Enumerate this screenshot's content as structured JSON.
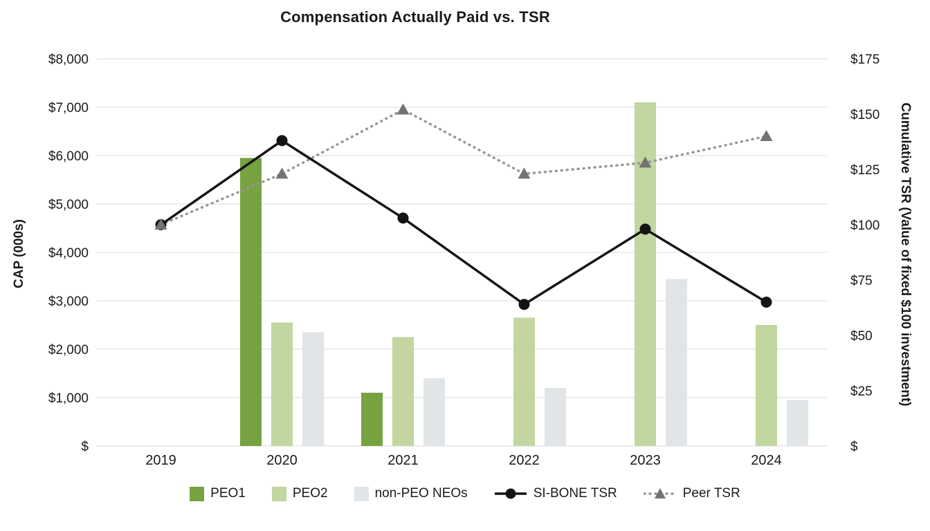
{
  "chart_data": {
    "type": "combo-bar-line",
    "title": "Compensation Actually Paid vs. TSR",
    "categories": [
      "2019",
      "2020",
      "2021",
      "2022",
      "2023",
      "2024"
    ],
    "left_axis": {
      "title": "CAP (000s)",
      "max": 8000,
      "tick_labels": [
        "$8,000",
        "$7,000",
        "$6,000",
        "$5,000",
        "$4,000",
        "$3,000",
        "$2,000",
        "$1,000",
        "$"
      ]
    },
    "right_axis": {
      "title": "Cumulative TSR (Value of fixed $100 investment)",
      "max": 175,
      "tick_labels": [
        "$175",
        "$150",
        "$125",
        "$100",
        "$75",
        "$50",
        "$25",
        "$"
      ]
    },
    "bar_series": [
      {
        "name": "PEO1",
        "color_key": "peo1",
        "values": [
          null,
          5950,
          1100,
          null,
          null,
          null
        ]
      },
      {
        "name": "PEO2",
        "color_key": "peo2",
        "values": [
          null,
          2550,
          2250,
          2650,
          7100,
          2500
        ]
      },
      {
        "name": "non-PEO NEOs",
        "color_key": "neo",
        "values": [
          null,
          2350,
          1400,
          1200,
          3450,
          950
        ]
      }
    ],
    "line_series": [
      {
        "name": "SI-BONE TSR",
        "color_key": "sibone",
        "marker": "circle",
        "dash": null,
        "values": [
          100,
          138,
          103,
          64,
          98,
          65
        ]
      },
      {
        "name": "Peer TSR",
        "color_key": "peer",
        "marker": "triangle",
        "marker_color_key": "peer-marker",
        "dash": "1 7",
        "values": [
          100,
          123,
          152,
          123,
          128,
          140
        ]
      }
    ],
    "legend": [
      {
        "label": "PEO1",
        "swatch": "square",
        "color_key": "peo1"
      },
      {
        "label": "PEO2",
        "swatch": "square",
        "color_key": "peo2"
      },
      {
        "label": "non-PEO NEOs",
        "swatch": "square",
        "color_key": "neo"
      },
      {
        "label": "SI-BONE TSR",
        "swatch": "line-circle",
        "color_key": "sibone"
      },
      {
        "label": "Peer TSR",
        "swatch": "line-triangle",
        "color_key": "peer"
      }
    ],
    "colors": {
      "peo1": "#76A240",
      "peo2": "#C2D6A0",
      "neo": "#E1E5E8",
      "sibone": "#141414",
      "peer": "#969696",
      "peer_marker": "#737373",
      "grid": "#D9D9D9"
    },
    "layout": {
      "grid": "horizontal-only",
      "legend_position": "bottom"
    }
  }
}
